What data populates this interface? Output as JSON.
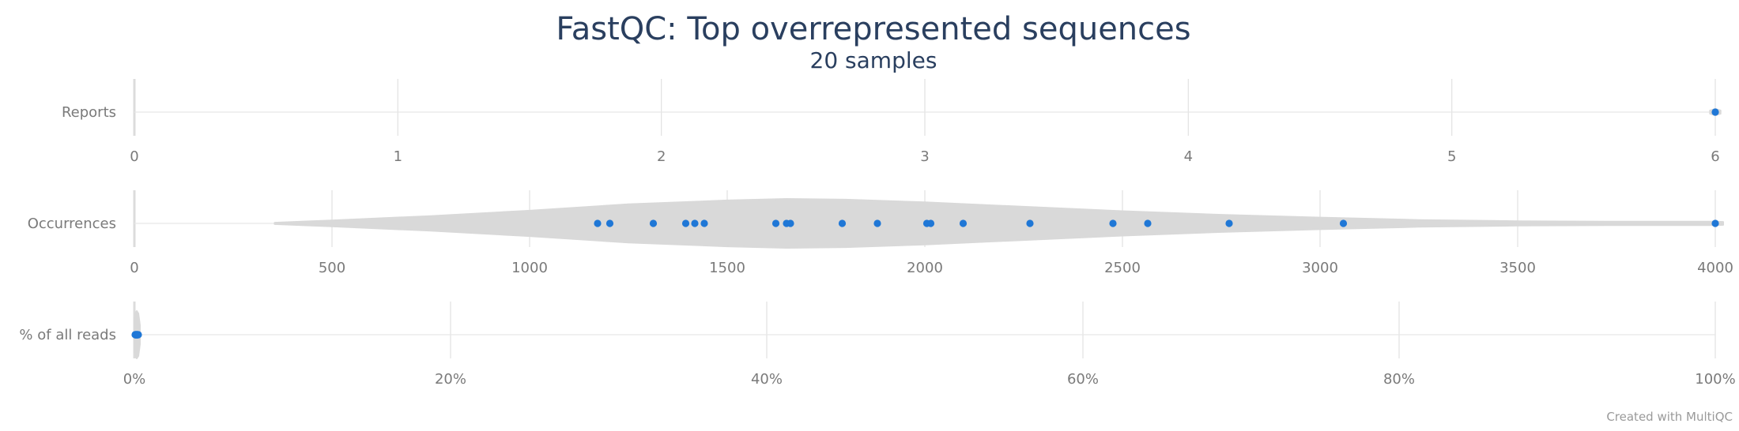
{
  "chart_data": {
    "type": "violin",
    "title": "FastQC: Top overrepresented sequences",
    "subtitle": "20 samples",
    "credit": "Created with MultiQC",
    "point_color": "#1f77d6",
    "violin_color": "#d9d9d9",
    "grid": true,
    "panels": [
      {
        "label": "Reports",
        "xlim": [
          0,
          6
        ],
        "ticks": [
          0,
          1,
          2,
          3,
          4,
          5,
          6
        ],
        "tick_labels": [
          "0",
          "1",
          "2",
          "3",
          "4",
          "5",
          "6"
        ],
        "points": [
          6
        ],
        "density": [
          [
            5.98,
            0.5
          ],
          [
            6.0,
            1.0
          ],
          [
            6.02,
            0.5
          ]
        ],
        "max_halfwidth_px": 4
      },
      {
        "label": "Occurrences",
        "xlim": [
          0,
          4000
        ],
        "ticks": [
          0,
          500,
          1000,
          1500,
          2000,
          2500,
          3000,
          3500,
          4000
        ],
        "tick_labels": [
          "0",
          "500",
          "1000",
          "1500",
          "2000",
          "2500",
          "3000",
          "3500",
          "4000"
        ],
        "points": [
          1172,
          1203,
          1313,
          1395,
          1418,
          1442,
          1623,
          1650,
          1660,
          1791,
          1880,
          2005,
          2015,
          2097,
          2266,
          2476,
          2564,
          2770,
          3059,
          4000
        ],
        "density": [
          [
            355,
            0.03
          ],
          [
            500,
            0.12
          ],
          [
            750,
            0.3
          ],
          [
            1000,
            0.52
          ],
          [
            1250,
            0.78
          ],
          [
            1500,
            0.94
          ],
          [
            1650,
            1.0
          ],
          [
            1800,
            0.97
          ],
          [
            2000,
            0.86
          ],
          [
            2250,
            0.68
          ],
          [
            2500,
            0.5
          ],
          [
            2750,
            0.35
          ],
          [
            3000,
            0.24
          ],
          [
            3250,
            0.14
          ],
          [
            3500,
            0.09
          ],
          [
            3750,
            0.07
          ],
          [
            4000,
            0.07
          ],
          [
            4020,
            0.06
          ]
        ],
        "max_halfwidth_px": 31
      },
      {
        "label": "% of all reads",
        "xlim": [
          0,
          100
        ],
        "ticks": [
          0,
          20,
          40,
          60,
          80,
          100
        ],
        "tick_labels": [
          "0%",
          "20%",
          "40%",
          "60%",
          "80%",
          "100%"
        ],
        "points": [
          0.05,
          0.06,
          0.07,
          0.08,
          0.09,
          0.1,
          0.11,
          0.12,
          0.13,
          0.14,
          0.15,
          0.16,
          0.17,
          0.18,
          0.19,
          0.2,
          0.21,
          0.22,
          0.23,
          0.25
        ],
        "density": [
          [
            0.0,
            0.6
          ],
          [
            0.05,
            0.9
          ],
          [
            0.15,
            1.0
          ],
          [
            0.25,
            0.9
          ],
          [
            0.35,
            0.4
          ]
        ],
        "max_halfwidth_px": 30
      }
    ]
  }
}
